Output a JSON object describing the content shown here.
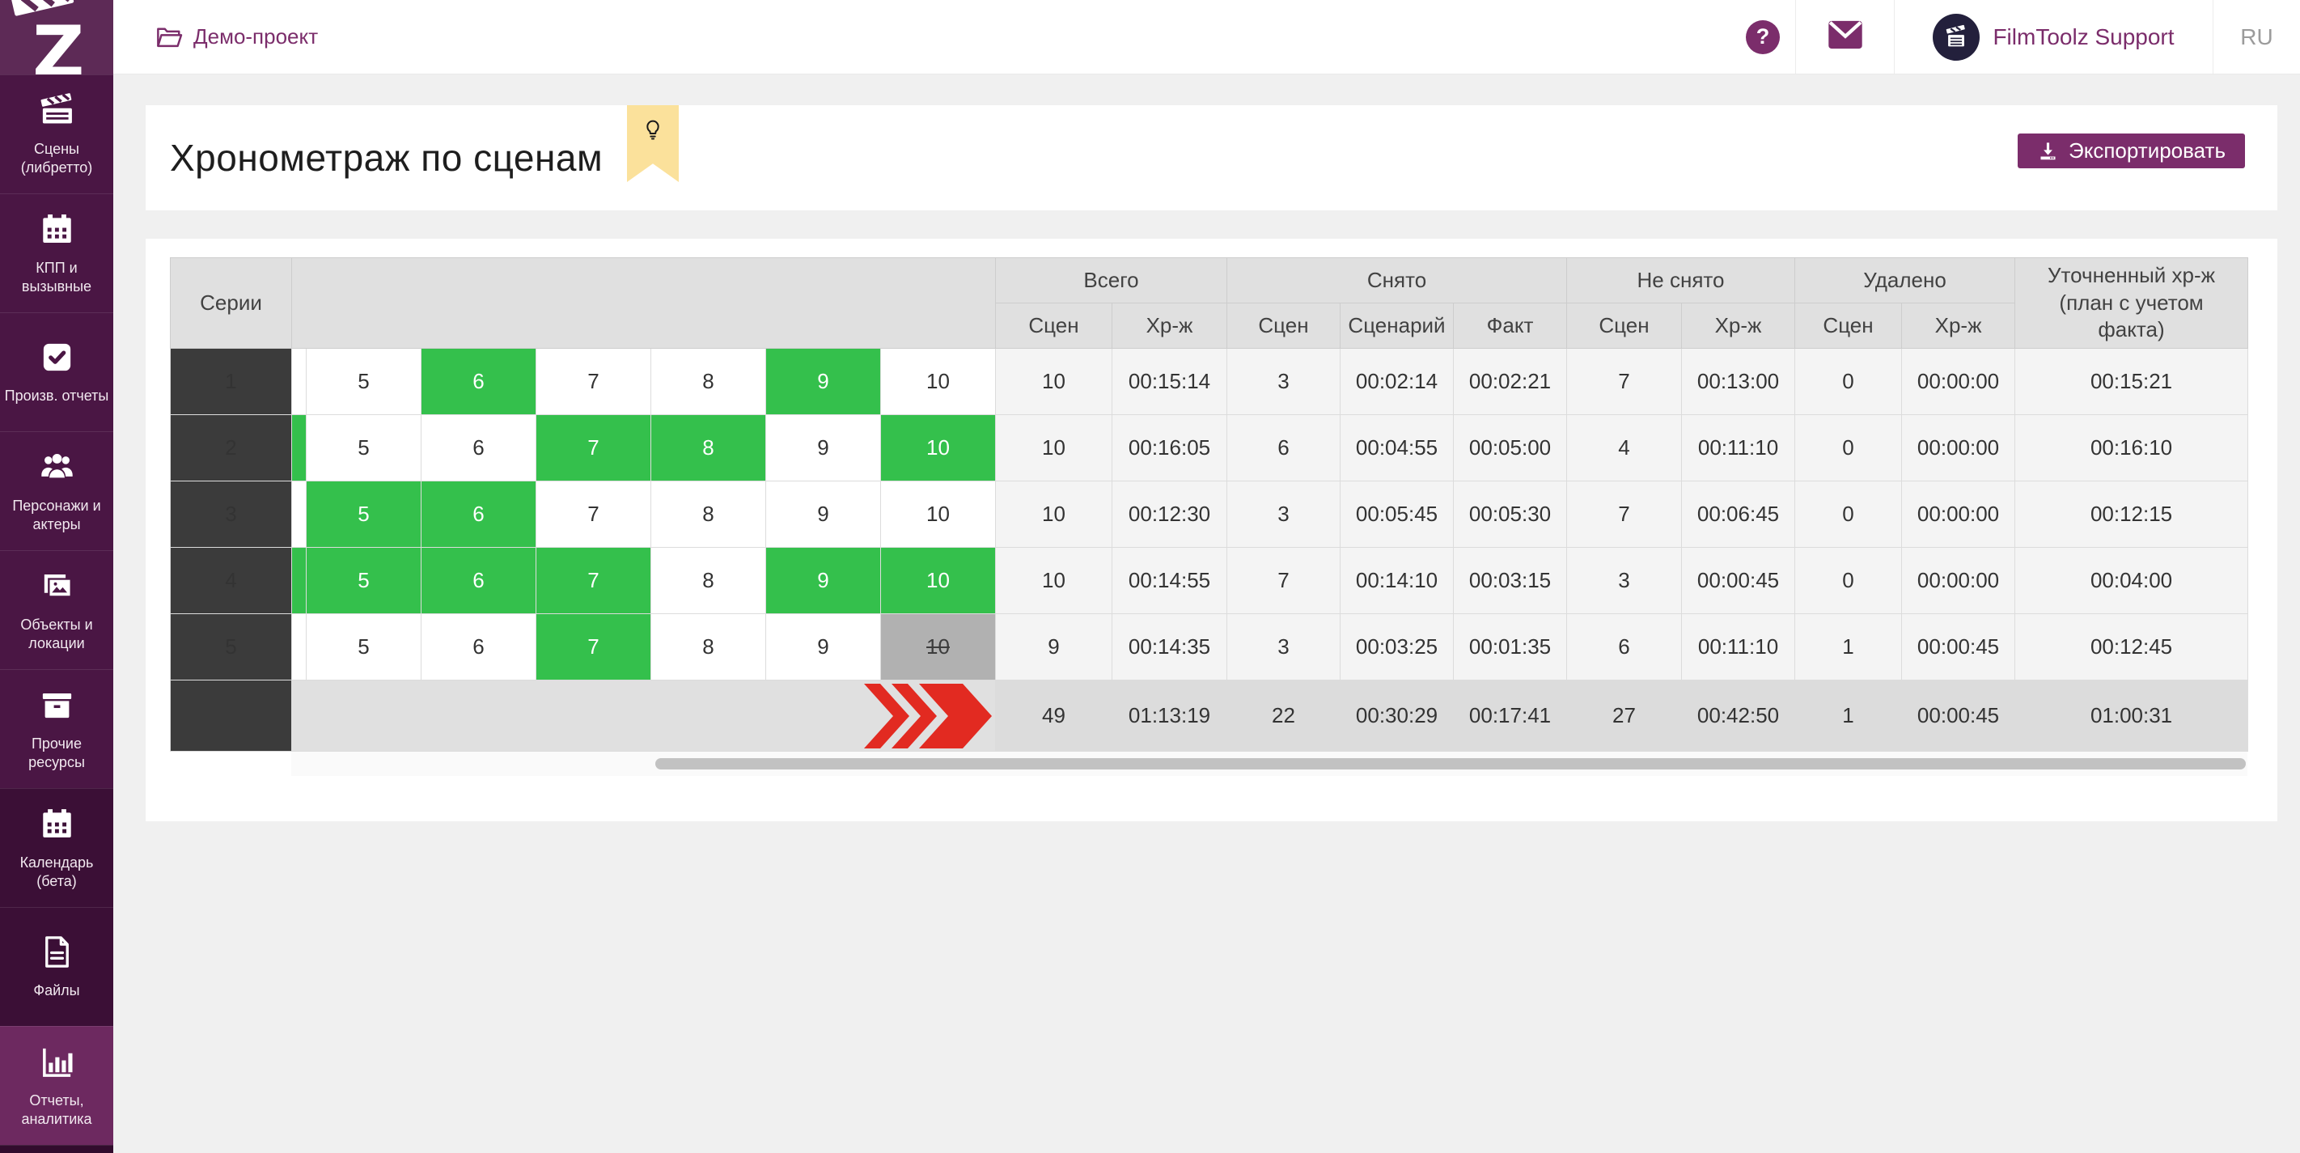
{
  "app": {
    "logo_letter": "Z",
    "project": "Демо-проект",
    "help_glyph": "?",
    "user": "FilmToolz Support",
    "language": "RU"
  },
  "sidebar": {
    "items": [
      {
        "label": "Сцены\n(либретто)",
        "icon": "clapperboard-icon",
        "variant": "normal",
        "active": false
      },
      {
        "label": "КПП и\nвызывные",
        "icon": "calendar-icon",
        "variant": "normal",
        "active": false
      },
      {
        "label": "Произв. отчеты",
        "icon": "check-square-icon",
        "variant": "normal",
        "active": false
      },
      {
        "label": "Персонажи и\nактеры",
        "icon": "people-icon",
        "variant": "normal",
        "active": false
      },
      {
        "label": "Объекты и\nлокации",
        "icon": "images-icon",
        "variant": "normal",
        "active": false
      },
      {
        "label": "Прочие\nресурсы",
        "icon": "box-icon",
        "variant": "normal",
        "active": false
      },
      {
        "label": "Календарь\n(бета)",
        "icon": "calendar-icon",
        "variant": "dark",
        "active": false
      },
      {
        "label": "Файлы",
        "icon": "file-icon",
        "variant": "dark",
        "active": false
      },
      {
        "label": "Отчеты,\nаналитика",
        "icon": "bar-chart-icon",
        "variant": "normal",
        "active": true
      }
    ]
  },
  "page": {
    "title": "Хронометраж по сценам",
    "export_label": "Экспортировать"
  },
  "table": {
    "series_header": "Серии",
    "groups": [
      {
        "label": "Всего",
        "cols": [
          "Сцен",
          "Хр-ж"
        ]
      },
      {
        "label": "Снято",
        "cols": [
          "Сцен",
          "Сценарий",
          "Факт"
        ]
      },
      {
        "label": "Не снято",
        "cols": [
          "Сцен",
          "Хр-ж"
        ]
      },
      {
        "label": "Удалено",
        "cols": [
          "Сцен",
          "Хр-ж"
        ]
      }
    ],
    "final_header": "Уточненный хр-ж (план с учетом факта)",
    "rows": [
      {
        "series": "1",
        "partial_prev_scene": "normal",
        "scenes": [
          {
            "n": "5",
            "state": "normal"
          },
          {
            "n": "6",
            "state": "shot"
          },
          {
            "n": "7",
            "state": "normal"
          },
          {
            "n": "8",
            "state": "normal"
          },
          {
            "n": "9",
            "state": "shot"
          },
          {
            "n": "10",
            "state": "normal"
          }
        ],
        "values": [
          "10",
          "00:15:14",
          "3",
          "00:02:14",
          "00:02:21",
          "7",
          "00:13:00",
          "0",
          "00:00:00",
          "00:15:21"
        ]
      },
      {
        "series": "2",
        "partial_prev_scene": "shot",
        "scenes": [
          {
            "n": "5",
            "state": "normal"
          },
          {
            "n": "6",
            "state": "normal"
          },
          {
            "n": "7",
            "state": "shot"
          },
          {
            "n": "8",
            "state": "shot"
          },
          {
            "n": "9",
            "state": "normal"
          },
          {
            "n": "10",
            "state": "shot"
          }
        ],
        "values": [
          "10",
          "00:16:05",
          "6",
          "00:04:55",
          "00:05:00",
          "4",
          "00:11:10",
          "0",
          "00:00:00",
          "00:16:10"
        ]
      },
      {
        "series": "3",
        "partial_prev_scene": "normal",
        "scenes": [
          {
            "n": "5",
            "state": "shot"
          },
          {
            "n": "6",
            "state": "shot"
          },
          {
            "n": "7",
            "state": "normal"
          },
          {
            "n": "8",
            "state": "normal"
          },
          {
            "n": "9",
            "state": "normal"
          },
          {
            "n": "10",
            "state": "normal"
          }
        ],
        "values": [
          "10",
          "00:12:30",
          "3",
          "00:05:45",
          "00:05:30",
          "7",
          "00:06:45",
          "0",
          "00:00:00",
          "00:12:15"
        ]
      },
      {
        "series": "4",
        "partial_prev_scene": "shot",
        "scenes": [
          {
            "n": "5",
            "state": "shot"
          },
          {
            "n": "6",
            "state": "shot"
          },
          {
            "n": "7",
            "state": "shot"
          },
          {
            "n": "8",
            "state": "normal"
          },
          {
            "n": "9",
            "state": "shot"
          },
          {
            "n": "10",
            "state": "shot"
          }
        ],
        "values": [
          "10",
          "00:14:55",
          "7",
          "00:14:10",
          "00:03:15",
          "3",
          "00:00:45",
          "0",
          "00:00:00",
          "00:04:00"
        ]
      },
      {
        "series": "5",
        "partial_prev_scene": "normal",
        "scenes": [
          {
            "n": "5",
            "state": "normal"
          },
          {
            "n": "6",
            "state": "normal"
          },
          {
            "n": "7",
            "state": "shot"
          },
          {
            "n": "8",
            "state": "normal"
          },
          {
            "n": "9",
            "state": "normal"
          },
          {
            "n": "10",
            "state": "deleted"
          }
        ],
        "values": [
          "9",
          "00:14:35",
          "3",
          "00:03:25",
          "00:01:35",
          "6",
          "00:11:10",
          "1",
          "00:00:45",
          "00:12:45"
        ]
      }
    ],
    "total": {
      "values": [
        "49",
        "01:13:19",
        "22",
        "00:30:29",
        "00:17:41",
        "27",
        "00:42:50",
        "1",
        "00:00:45",
        "01:00:31"
      ]
    }
  },
  "colors": {
    "accent_purple": "#7b2d6b",
    "sidebar_purple": "#4a1644",
    "active_item_purple": "#6d2960",
    "shot_green": "#34c04c",
    "deleted_gray": "#b1b1b1",
    "scroll_arrows_red": "#e22a21",
    "bookmark_yellow": "#fbe19b",
    "series_cell_dark": "#3b3b3b"
  }
}
